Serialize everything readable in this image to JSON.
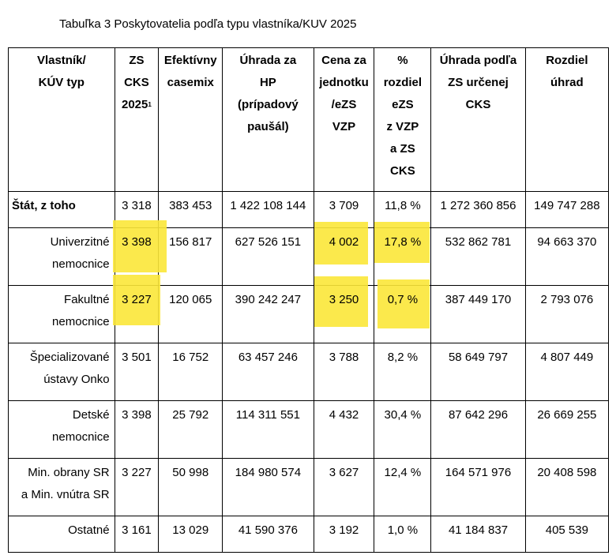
{
  "caption": "Tabuľka 3 Poskytovatelia podľa typu vlastníka/KUV 2025",
  "headers": [
    {
      "lines": [
        "Vlastník/",
        "KÚV typ"
      ]
    },
    {
      "lines": [
        "ZS",
        "CKS",
        "2025"
      ],
      "sup": "1"
    },
    {
      "lines": [
        "Efektívny",
        "casemix"
      ]
    },
    {
      "lines": [
        "Úhrada za",
        "HP",
        "(prípadový",
        "paušál)"
      ]
    },
    {
      "lines": [
        "Cena za",
        "jednotku",
        "/eZS",
        "VZP"
      ]
    },
    {
      "lines": [
        "%",
        "rozdiel",
        "eZS",
        "z VZP",
        "a ZS",
        "CKS"
      ]
    },
    {
      "lines": [
        "Úhrada podľa",
        "ZS určenej",
        "CKS"
      ]
    },
    {
      "lines": [
        "Rozdiel",
        "úhrad"
      ]
    }
  ],
  "rows": [
    {
      "label": [
        "Štát, z toho"
      ],
      "values": [
        "3 318",
        "383 453",
        "1 422 108 144",
        "3 709",
        "11,8 %",
        "1 272 360 856",
        "149 747 288"
      ]
    },
    {
      "label": [
        "Univerzitné",
        "nemocnice"
      ],
      "values": [
        "3 398",
        "156 817",
        "627 526 151",
        "4 002",
        "17,8 %",
        "532 862 781",
        "94 663 370"
      ]
    },
    {
      "label": [
        "Fakultné",
        "nemocnice"
      ],
      "values": [
        "3 227",
        "120 065",
        "390 242 247",
        "3 250",
        "0,7 %",
        "387 449 170",
        "2 793 076"
      ]
    },
    {
      "label": [
        "Špecializované",
        "ústavy Onko"
      ],
      "values": [
        "3 501",
        "16 752",
        "63 457 246",
        "3 788",
        "8,2 %",
        "58 649 797",
        "4 807 449"
      ]
    },
    {
      "label": [
        "Detské",
        "nemocnice"
      ],
      "values": [
        "3 398",
        "25 792",
        "114 311 551",
        "4 432",
        "30,4 %",
        "87 642 296",
        "26 669 255"
      ]
    },
    {
      "label": [
        "Min. obrany SR",
        "a Min. vnútra SR"
      ],
      "values": [
        "3 227",
        "50 998",
        "184 980 574",
        "3 627",
        "12,4 %",
        "164 571 976",
        "20 408 598"
      ]
    },
    {
      "label": [
        "Ostatné"
      ],
      "values": [
        "3 161",
        "13 029",
        "41 590 376",
        "3 192",
        "1,0 %",
        "41 184 837",
        "405 539"
      ]
    }
  ],
  "highlight_color": "#fbe739"
}
